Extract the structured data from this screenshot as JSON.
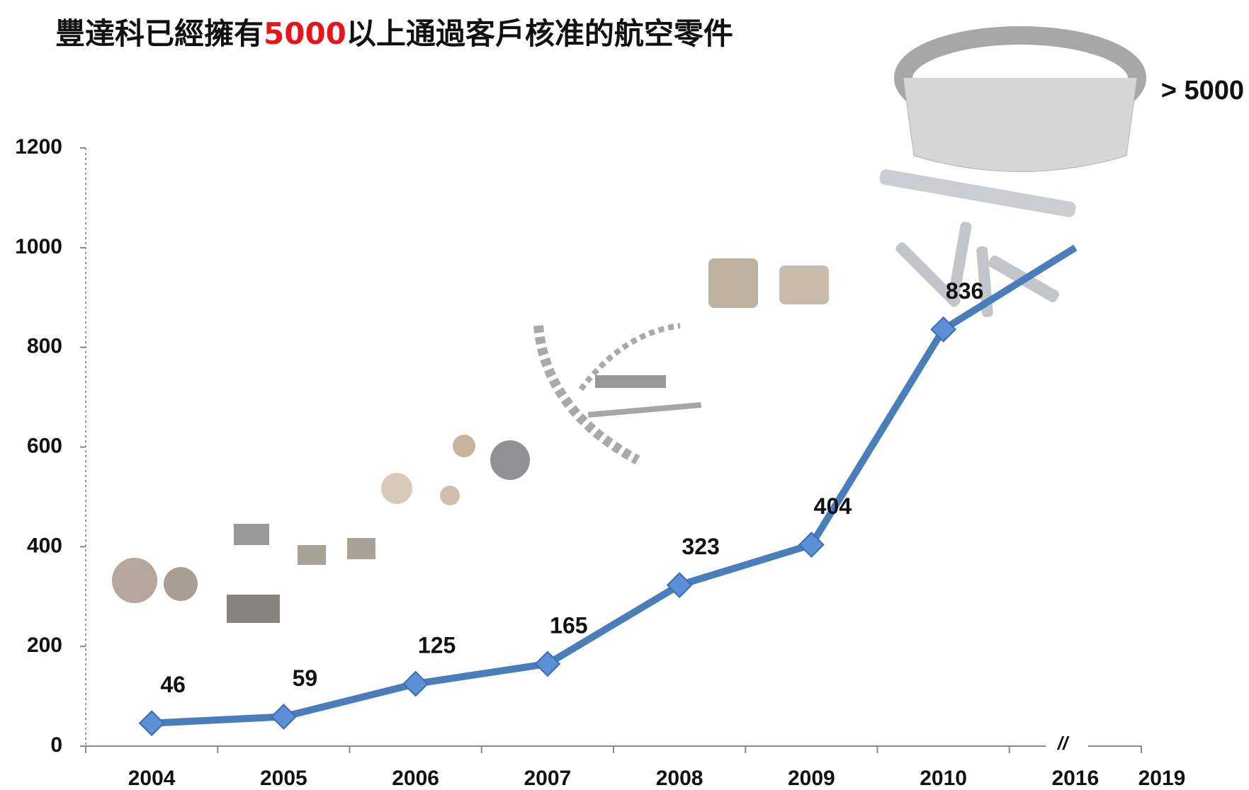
{
  "chart_data": {
    "type": "line",
    "title": {
      "before": "豐達科已經擁有",
      "highlight": "5000",
      "after": "以上通過客戶核准的航空零件"
    },
    "categories": [
      "2004",
      "2005",
      "2006",
      "2007",
      "2008",
      "2009",
      "2010",
      "2016"
    ],
    "values": [
      46,
      59,
      125,
      165,
      323,
      404,
      836,
      1000
    ],
    "value_labels": [
      "46",
      "59",
      "125",
      "165",
      "323",
      "404",
      "836",
      null
    ],
    "extra_category": "2019",
    "extra_annotation": "> 5000",
    "axis_break": "//",
    "color": "#4a7ebb",
    "highlight_color": "#e8141a",
    "ylim": [
      0,
      1200
    ],
    "yticks": [
      0,
      200,
      400,
      600,
      800,
      1000,
      1200
    ]
  }
}
